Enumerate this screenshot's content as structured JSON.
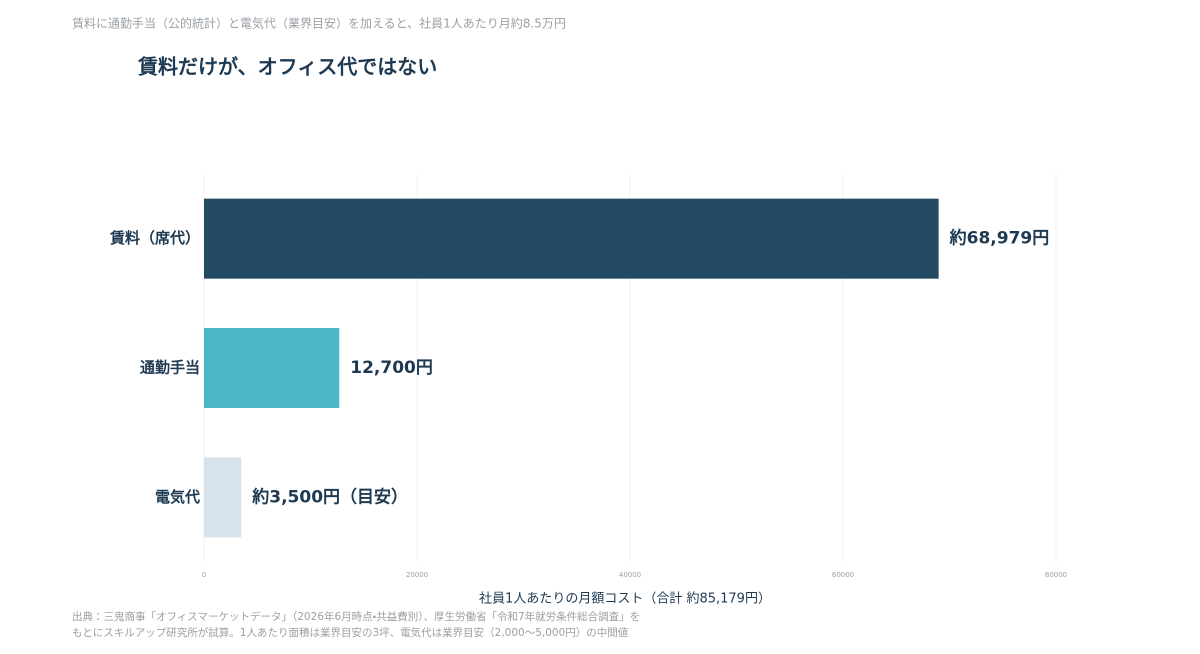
{
  "chart_data": {
    "type": "bar",
    "orientation": "horizontal",
    "subtitle": "賃料に通勤手当（公的統計）と電気代（業界目安）を加えると、社員1人あたり月約8.5万円",
    "title": "賃料だけが、オフィス代ではない",
    "categories": [
      "賃料（席代）",
      "通勤手当",
      "電気代"
    ],
    "values": [
      68979,
      12700,
      3500
    ],
    "value_labels": [
      "約68,979円",
      "12,700円",
      "約3,500円（目安）"
    ],
    "colors": [
      "#234a63",
      "#4bb6c4",
      "#d8e2ea"
    ],
    "xlim": [
      0,
      80000
    ],
    "xticks": [
      0,
      20000,
      40000,
      60000,
      80000
    ],
    "grid": true,
    "xlabel": "社員1人あたりの月額コスト（合計 約85,179円）",
    "source": [
      "出典：三鬼商事「オフィスマーケットデータ」（2026年6月時点・共益費別）、厚生労働省「令和7年就労条件総合調査」を",
      "もとにスキルアップ研究所が試算。1人あたり面積は業界目安の3坪、電気代は業界目安（2,000〜5,000円）の中間値"
    ]
  }
}
